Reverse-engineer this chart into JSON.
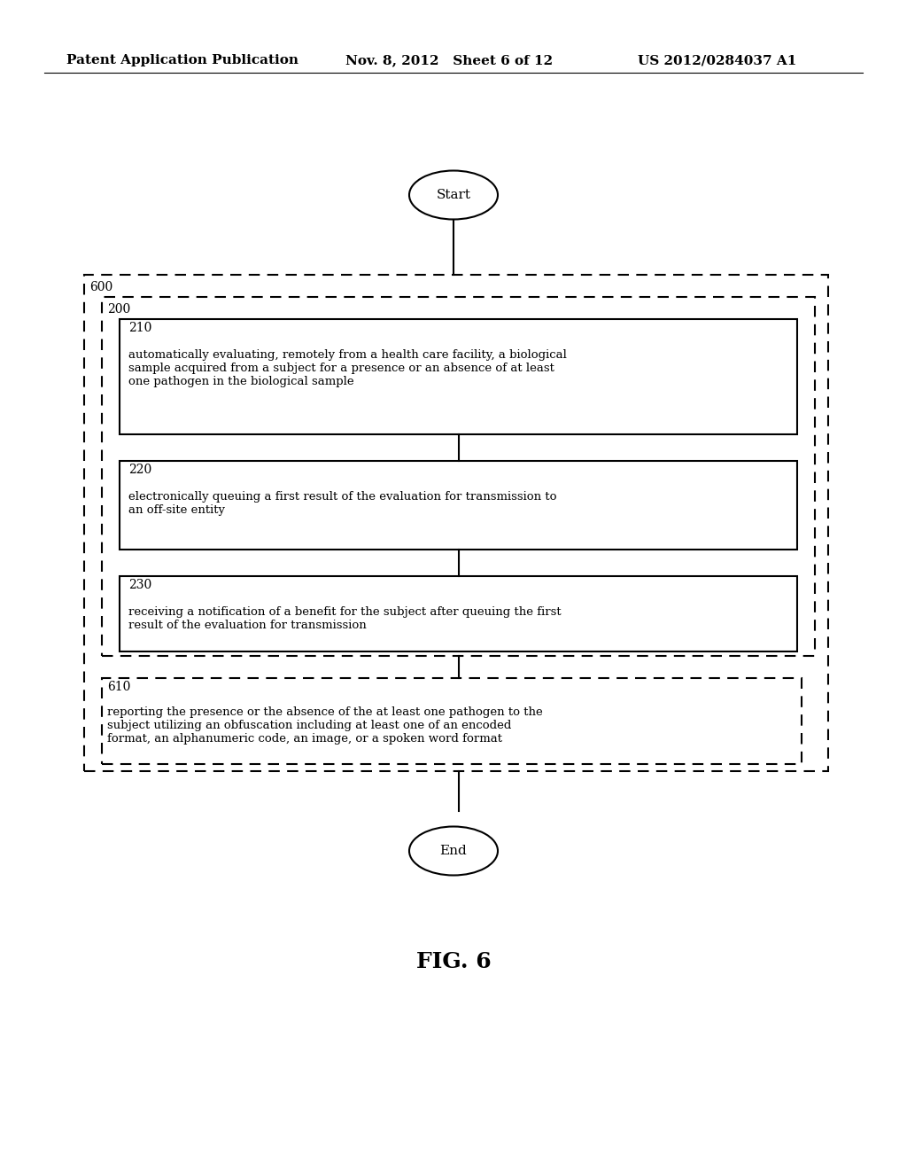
{
  "header_left": "Patent Application Publication",
  "header_mid": "Nov. 8, 2012   Sheet 6 of 12",
  "header_right": "US 2012/0284037 A1",
  "start_label": "Start",
  "end_label": "End",
  "fig_label": "FIG. 6",
  "outer_label": "600",
  "inner_label": "200",
  "box210_num": "210",
  "box210_text": "automatically evaluating, remotely from a health care facility, a biological\nsample acquired from a subject for a presence or an absence of at least\none pathogen in the biological sample",
  "box220_num": "220",
  "box220_text": "electronically queuing a first result of the evaluation for transmission to\nan off-site entity",
  "box230_num": "230",
  "box230_text": "receiving a notification of a benefit for the subject after queuing the first\nresult of the evaluation for transmission",
  "box610_num": "610",
  "box610_text": "reporting the presence or the absence of the at least one pathogen to the\nsubject utilizing an obfuscation including at least one of an encoded\nformat, an alphanumeric code, an image, or a spoken word format",
  "bg_color": "#ffffff",
  "text_color": "#000000",
  "line_color": "#000000"
}
